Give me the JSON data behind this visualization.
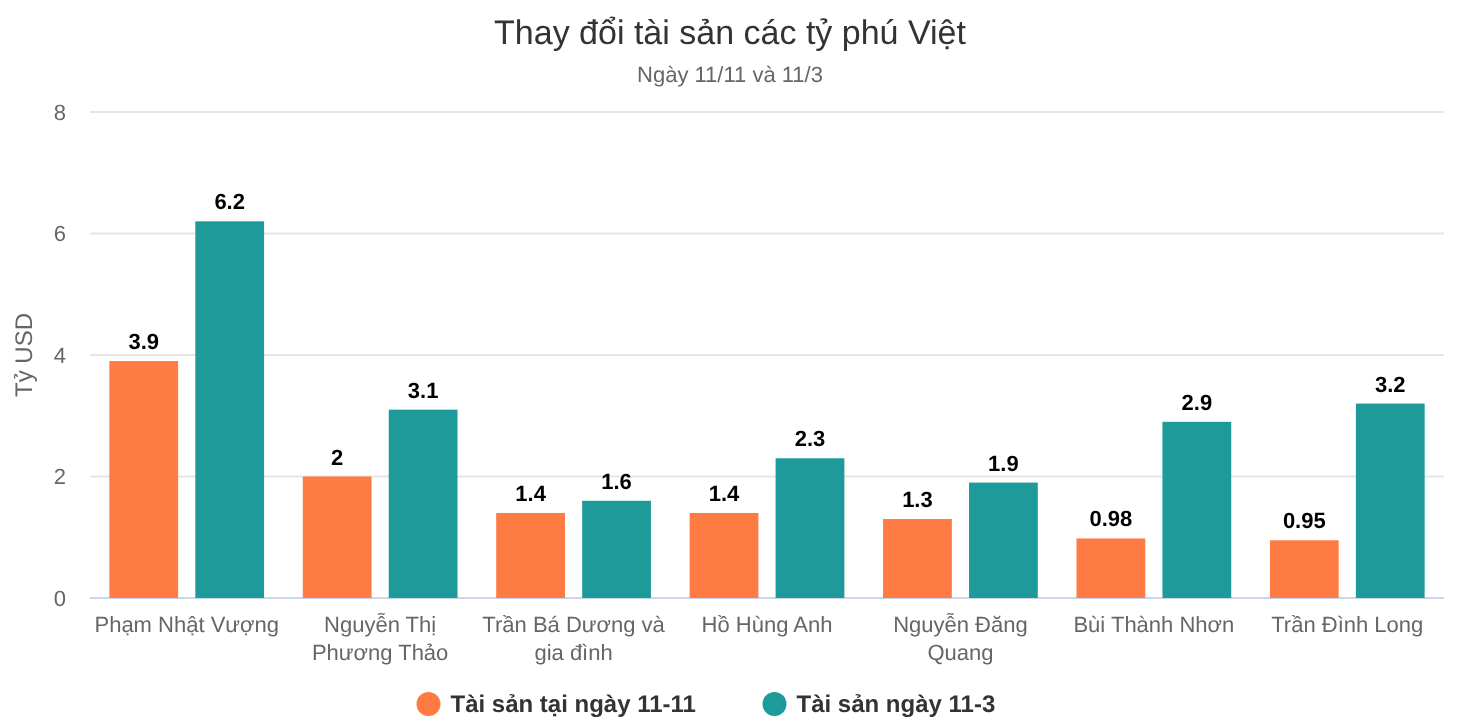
{
  "chart_data": {
    "type": "bar",
    "title": "Thay đổi tài sản các tỷ phú Việt",
    "subtitle": "Ngày 11/11 và 11/3",
    "ylabel": "Tỷ USD",
    "categories": [
      "Phạm Nhật Vượng",
      "Nguyễn Thị Phương Thảo",
      "Trần Bá Dương và gia đình",
      "Hồ Hùng Anh",
      "Nguyễn Đăng Quang",
      "Bùi Thành Nhơn",
      "Trần Đình Long"
    ],
    "series": [
      {
        "name": "Tài sản tại ngày 11-11",
        "color": "#fe7b43",
        "values": [
          3.9,
          2,
          1.4,
          1.4,
          1.3,
          0.98,
          0.95
        ]
      },
      {
        "name": "Tài sản ngày 11-3",
        "color": "#1e9a9b",
        "values": [
          6.2,
          3.1,
          1.6,
          2.3,
          1.9,
          2.9,
          3.2
        ]
      }
    ],
    "ylim": [
      0,
      8
    ],
    "yticks": [
      0,
      2,
      4,
      6,
      8
    ],
    "grid": "y",
    "legend": "bottom",
    "data_labels": true
  }
}
